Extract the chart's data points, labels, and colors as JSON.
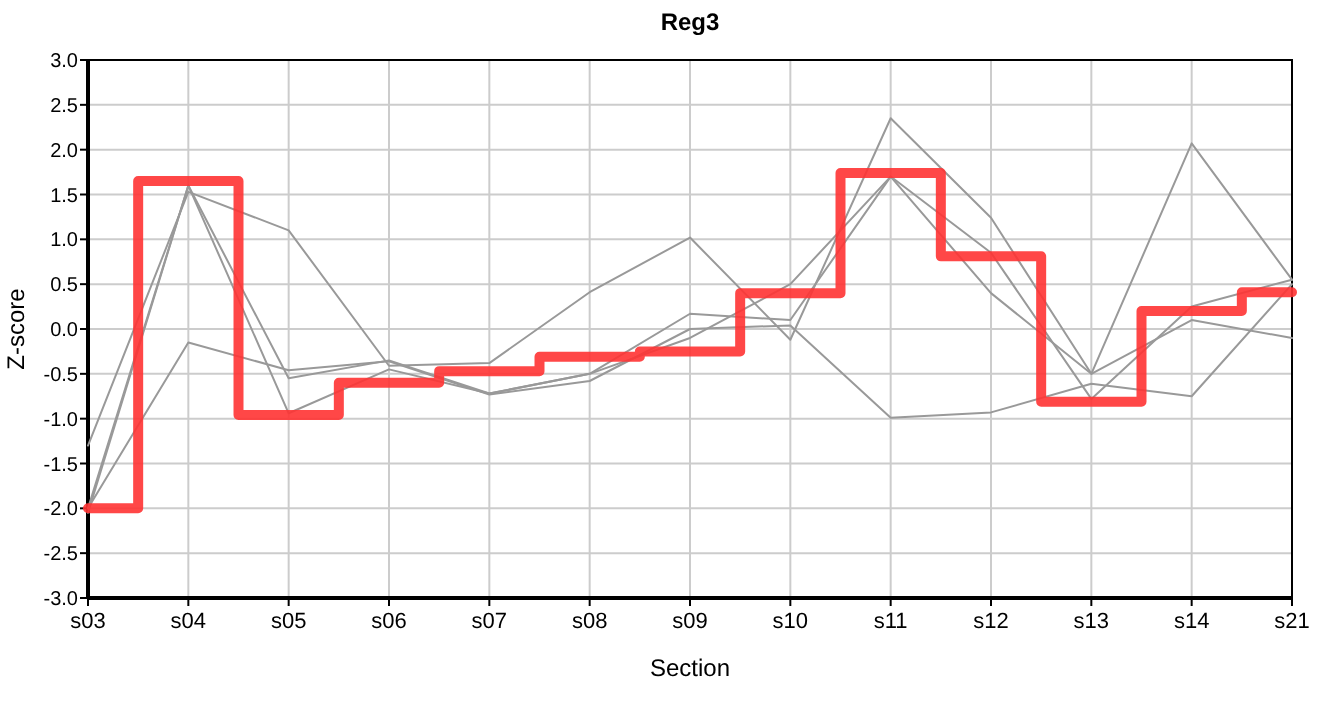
{
  "chart_data": {
    "type": "line",
    "title": "Reg3",
    "xlabel": "Section",
    "ylabel": "Z-score",
    "categories": [
      "s03",
      "s04",
      "s05",
      "s06",
      "s07",
      "s08",
      "s09",
      "s10",
      "s11",
      "s12",
      "s13",
      "s14",
      "s21"
    ],
    "series": [
      {
        "color": "#999999",
        "values": [
          -1.3,
          1.53,
          1.1,
          -0.41,
          -0.38,
          0.41,
          1.02,
          -0.12,
          2.35,
          1.24,
          -0.5,
          2.07,
          0.55
        ]
      },
      {
        "color": "#999999",
        "values": [
          -2.0,
          -0.15,
          -0.46,
          -0.36,
          -0.73,
          -0.58,
          0.0,
          0.04,
          -0.99,
          -0.93,
          -0.61,
          -0.75,
          0.5
        ]
      },
      {
        "color": "#999999",
        "values": [
          -2.05,
          1.6,
          -0.55,
          -0.35,
          -0.72,
          -0.5,
          0.17,
          0.1,
          1.7,
          0.4,
          -0.5,
          0.1,
          -0.1
        ]
      },
      {
        "color": "#999999",
        "values": [
          -2.0,
          1.6,
          -0.94,
          -0.45,
          -0.72,
          -0.5,
          -0.1,
          0.5,
          1.7,
          0.85,
          -0.78,
          0.25,
          0.55
        ]
      },
      {
        "type": "step",
        "color": "#ff3333",
        "values": [
          -2.0,
          1.65,
          -0.96,
          -0.6,
          -0.47,
          -0.31,
          -0.25,
          0.4,
          1.74,
          0.81,
          -0.81,
          0.2,
          0.41
        ]
      }
    ],
    "ylim": [
      -3,
      3
    ],
    "yticks": [
      {
        "value": -3,
        "label": "-3.0"
      },
      {
        "value": -2.5,
        "label": "-2.5"
      },
      {
        "value": -2,
        "label": "-2.0"
      },
      {
        "value": -1.5,
        "label": "-1.5"
      },
      {
        "value": -1,
        "label": "-1.0"
      },
      {
        "value": -0.5,
        "label": "-0.5"
      },
      {
        "value": 0,
        "label": "0.0"
      },
      {
        "value": 0.5,
        "label": "0.5"
      },
      {
        "value": 1,
        "label": "1.0"
      },
      {
        "value": 1.5,
        "label": "1.5"
      },
      {
        "value": 2,
        "label": "2.0"
      },
      {
        "value": 2.5,
        "label": "2.5"
      },
      {
        "value": 3,
        "label": "3.0"
      }
    ],
    "grid": true,
    "marker": "none",
    "line_style": "solid"
  }
}
